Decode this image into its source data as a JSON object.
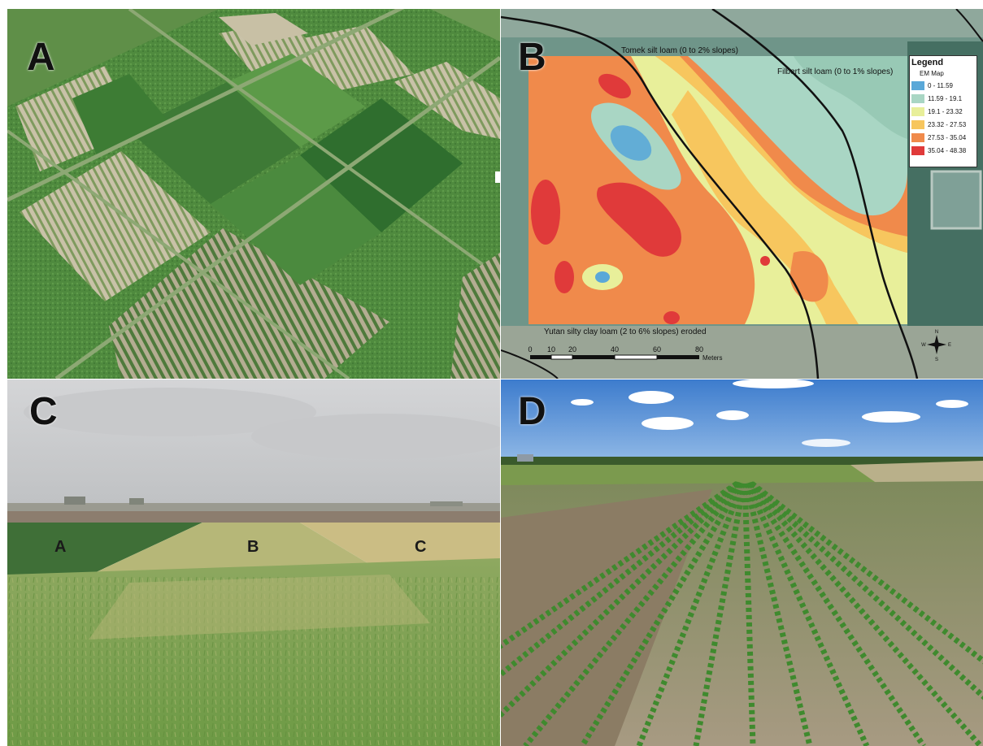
{
  "panels": {
    "a": {
      "letter": "A"
    },
    "b": {
      "letter": "B",
      "soil_labels": {
        "tomek": "Tomek silt loam (0 to 2% slopes)",
        "filbert": "Filbert silt loam (0 to 1% slopes)",
        "yutan": "Yutan silty clay loam (2 to 6% slopes) eroded"
      },
      "legend": {
        "title": "Legend",
        "subtitle": "EM Map",
        "items": [
          {
            "label": "0 - 11.59",
            "color": "#5aa8d8"
          },
          {
            "label": "11.59 - 19.1",
            "color": "#a9d6c4"
          },
          {
            "label": "19.1 - 23.32",
            "color": "#e8ef9a"
          },
          {
            "label": "23.32 - 27.53",
            "color": "#f7c65e"
          },
          {
            "label": "27.53 - 35.04",
            "color": "#f08a4b"
          },
          {
            "label": "35.04 - 48.38",
            "color": "#e03a3a"
          }
        ]
      },
      "scale_bar": {
        "ticks": [
          "0",
          "10",
          "20",
          "40",
          "60",
          "80"
        ],
        "unit": "Meters"
      },
      "north_arrow": {
        "n": "N",
        "s": "S",
        "e": "E",
        "w": "W"
      }
    },
    "c": {
      "letter": "C",
      "strip_labels": [
        "A",
        "B",
        "C"
      ]
    },
    "d": {
      "letter": "D"
    }
  }
}
